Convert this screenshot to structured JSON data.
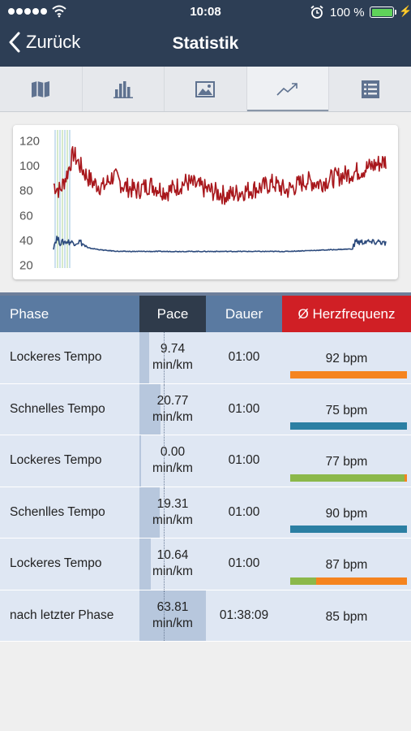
{
  "status_bar": {
    "time": "10:08",
    "battery": "100 %"
  },
  "nav": {
    "back_label": "Zurück",
    "title": "Statistik"
  },
  "tabs": [
    {
      "icon": "map-icon",
      "active": false
    },
    {
      "icon": "bar-chart-icon",
      "active": false
    },
    {
      "icon": "image-icon",
      "active": false
    },
    {
      "icon": "trend-line-icon",
      "active": true
    },
    {
      "icon": "list-icon",
      "active": false
    }
  ],
  "chart_data": {
    "type": "line",
    "y_ticks": [
      120,
      100,
      80,
      60,
      40,
      20
    ],
    "ylim": [
      15,
      125
    ],
    "series": [
      {
        "color": "#a8171c",
        "x": [
          0,
          2,
          4,
          6,
          8,
          10,
          12,
          15,
          18,
          21,
          25,
          29,
          34,
          40,
          46,
          52,
          58,
          63,
          66,
          70,
          73,
          76,
          80,
          84,
          88,
          92,
          96,
          100
        ],
        "y": [
          85,
          80,
          93,
          110,
          100,
          92,
          86,
          83,
          92,
          84,
          80,
          85,
          79,
          87,
          81,
          76,
          80,
          83,
          86,
          80,
          84,
          88,
          86,
          90,
          93,
          96,
          100,
          104
        ]
      },
      {
        "color": "#2c4a7c",
        "x": [
          0,
          1,
          2,
          4,
          6,
          8,
          10,
          15,
          20,
          30,
          40,
          50,
          60,
          70,
          80,
          90,
          91,
          92,
          94,
          96,
          98,
          100
        ],
        "y": [
          35,
          42,
          38,
          39,
          38,
          39,
          34,
          32,
          31,
          31,
          31,
          31,
          31,
          31,
          32,
          33,
          40,
          38,
          39,
          38,
          39,
          37
        ]
      }
    ]
  },
  "table": {
    "headers": {
      "phase": "Phase",
      "pace": "Pace",
      "duration": "Dauer",
      "heart_rate": "Ø Herzfrequenz"
    },
    "header_colors": {
      "phase": "#5a7aa1",
      "pace": "#2f3b4b",
      "duration": "#5a7aa1",
      "heart_rate": "#d01f25"
    },
    "rows": [
      {
        "phase": "Lockeres Tempo",
        "pace": "9.74",
        "pace_unit": "min/km",
        "pace_fill": 0.15,
        "duration": "01:00",
        "hr": "92 bpm",
        "hr_bar": [
          {
            "color": "#f5841f",
            "fraction": 1.0
          }
        ]
      },
      {
        "phase": "Schnelles Tempo",
        "pace": "20.77",
        "pace_unit": "min/km",
        "pace_fill": 0.32,
        "duration": "01:00",
        "hr": "75 bpm",
        "hr_bar": [
          {
            "color": "#2b7fa3",
            "fraction": 1.0
          }
        ]
      },
      {
        "phase": "Lockeres Tempo",
        "pace": "0.00",
        "pace_unit": "min/km",
        "pace_fill": 0.0,
        "duration": "01:00",
        "hr": "77 bpm",
        "hr_bar": [
          {
            "color": "#8bb84a",
            "fraction": 0.98
          },
          {
            "color": "#f5841f",
            "fraction": 0.02
          }
        ]
      },
      {
        "phase": "Schenlles Tempo",
        "pace": "19.31",
        "pace_unit": "min/km",
        "pace_fill": 0.3,
        "duration": "01:00",
        "hr": "90 bpm",
        "hr_bar": [
          {
            "color": "#2b7fa3",
            "fraction": 1.0
          }
        ]
      },
      {
        "phase": "Lockeres Tempo",
        "pace": "10.64",
        "pace_unit": "min/km",
        "pace_fill": 0.17,
        "duration": "01:00",
        "hr": "87 bpm",
        "hr_bar": [
          {
            "color": "#8bb84a",
            "fraction": 0.22
          },
          {
            "color": "#f5841f",
            "fraction": 0.78
          }
        ]
      },
      {
        "phase": "nach letzter Phase",
        "pace": "63.81",
        "pace_unit": "min/km",
        "pace_fill": 1.0,
        "duration": "01:38:09",
        "hr": "85 bpm",
        "hr_bar": []
      }
    ]
  }
}
